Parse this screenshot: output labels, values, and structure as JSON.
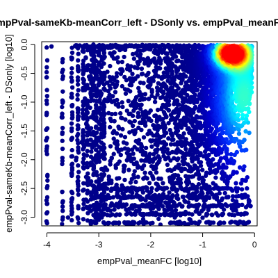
{
  "chart_data": {
    "type": "scatter",
    "title": "empPval-sameKb-meanCorr_left - DSonly vs. empPval_meanFC",
    "xlabel": "empPval_meanFC [log10]",
    "ylabel": "empPval-sameKb-meanCorr_left - DSonly [log10]",
    "xlim": [
      -4.1,
      0.05
    ],
    "ylim": [
      -3.15,
      0.05
    ],
    "x_ticks": [
      -4,
      -3,
      -2,
      -1,
      0
    ],
    "x_tick_labels": [
      "-4",
      "-3",
      "-2",
      "-1",
      "0"
    ],
    "y_ticks": [
      0.0,
      -0.5,
      -1.0,
      -1.5,
      -2.0,
      -2.5,
      -3.0
    ],
    "y_tick_labels": [
      "0.0",
      "-0.5",
      "-1.0",
      "-1.5",
      "-2.0",
      "-2.5",
      "-3.0"
    ],
    "color_scale": [
      "#00008b",
      "#0000cd",
      "#0033ff",
      "#0080ff",
      "#00ffff",
      "#7fff7f",
      "#ffff00",
      "#ff8000",
      "#ff0000"
    ],
    "density_peak": {
      "x": -0.45,
      "y": -0.15
    },
    "discrete_x_columns": [
      -4.0,
      -3.7,
      -3.52,
      -3.4,
      -3.3,
      -3.22,
      -3.15,
      -3.1,
      -3.05,
      -3.0,
      -2.95,
      -2.9
    ],
    "discrete_y_rows": [
      -3.1,
      -2.95,
      -2.8,
      -2.65,
      -2.5
    ]
  }
}
